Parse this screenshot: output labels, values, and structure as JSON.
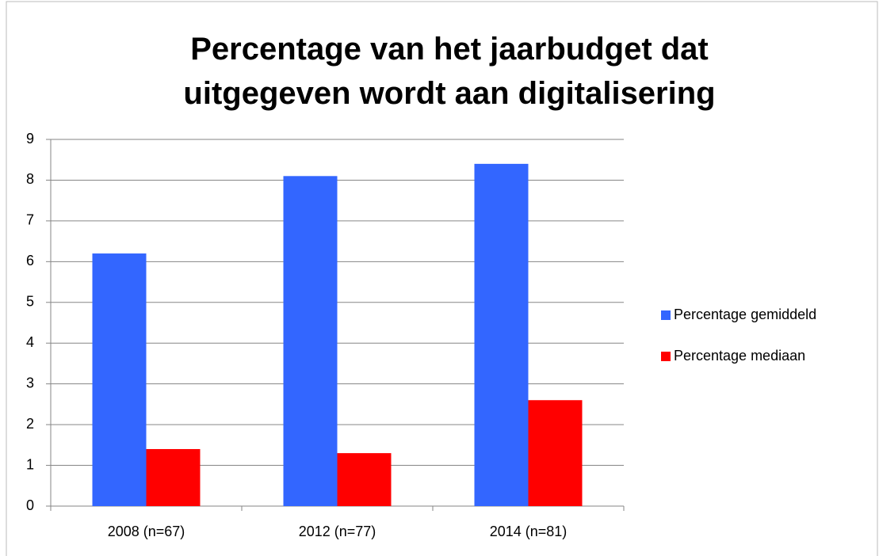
{
  "chart_data": {
    "type": "bar",
    "title": "Percentage van het jaarbudget dat uitgegeven wordt aan digitalisering",
    "categories": [
      "2008 (n=67)",
      "2012 (n=77)",
      "2014 (n=81)"
    ],
    "series": [
      {
        "name": "Percentage gemiddeld",
        "color": "#3366ff",
        "values": [
          6.2,
          8.1,
          8.4
        ]
      },
      {
        "name": "Percentage mediaan",
        "color": "#ff0000",
        "values": [
          1.4,
          1.3,
          2.6
        ]
      }
    ],
    "ylim": [
      0,
      9
    ],
    "yticks": [
      0,
      1,
      2,
      3,
      4,
      5,
      6,
      7,
      8,
      9
    ],
    "grid": true,
    "legend": "right"
  }
}
